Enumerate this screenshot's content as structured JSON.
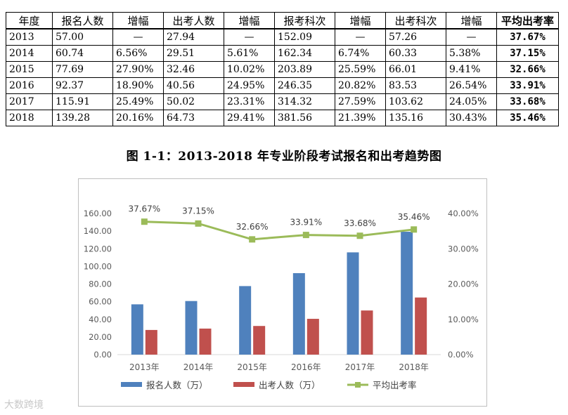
{
  "table": {
    "headers": [
      "年度",
      "报名人数",
      "增幅",
      "出考人数",
      "增幅",
      "报考科次",
      "增幅",
      "出考科次",
      "增幅",
      "平均出考率"
    ],
    "rows": [
      [
        "2013",
        "57.00",
        "—",
        "27.94",
        "—",
        "152.09",
        "—",
        "57.26",
        "—",
        "37.67%"
      ],
      [
        "2014",
        "60.74",
        "6.56%",
        "29.51",
        "5.61%",
        "162.34",
        "6.74%",
        "60.33",
        "5.38%",
        "37.15%"
      ],
      [
        "2015",
        "77.69",
        "27.90%",
        "32.46",
        "10.02%",
        "203.89",
        "25.59%",
        "66.01",
        "9.41%",
        "32.66%"
      ],
      [
        "2016",
        "92.37",
        "18.90%",
        "40.56",
        "24.95%",
        "246.35",
        "20.82%",
        "83.53",
        "26.54%",
        "33.91%"
      ],
      [
        "2017",
        "115.91",
        "25.49%",
        "50.02",
        "23.31%",
        "314.32",
        "27.59%",
        "103.62",
        "24.05%",
        "33.68%"
      ],
      [
        "2018",
        "139.28",
        "20.16%",
        "64.73",
        "29.41%",
        "381.56",
        "21.39%",
        "135.16",
        "30.43%",
        "35.46%"
      ]
    ]
  },
  "figure_title": "图 1-1：2013-2018 年专业阶段考试报名和出考趋势图",
  "watermark": "大数跨境",
  "chart_data": {
    "type": "bar",
    "categories": [
      "2013年",
      "2014年",
      "2015年",
      "2016年",
      "2017年",
      "2018年"
    ],
    "series": [
      {
        "name": "报名人数（万）",
        "type": "bar",
        "axis": "left",
        "color": "#4f81bd",
        "values": [
          57.0,
          60.74,
          77.69,
          92.37,
          115.91,
          139.28
        ]
      },
      {
        "name": "出考人数（万）",
        "type": "bar",
        "axis": "left",
        "color": "#c0504d",
        "values": [
          27.94,
          29.51,
          32.46,
          40.56,
          50.02,
          64.73
        ]
      },
      {
        "name": "平均出考率",
        "type": "line",
        "axis": "right",
        "color": "#9bbb59",
        "values": [
          37.67,
          37.15,
          32.66,
          33.91,
          33.68,
          35.46
        ],
        "labels": [
          "37.67%",
          "37.15%",
          "32.66%",
          "33.91%",
          "33.68%",
          "35.46%"
        ]
      }
    ],
    "ylim": [
      0,
      160
    ],
    "yticks": [
      "0.00",
      "20.00",
      "40.00",
      "60.00",
      "80.00",
      "100.00",
      "120.00",
      "140.00",
      "160.00"
    ],
    "y2lim": [
      0,
      40
    ],
    "y2ticks": [
      "0.00%",
      "10.00%",
      "20.00%",
      "30.00%",
      "40.00%"
    ],
    "grid": false,
    "legend_position": "bottom"
  }
}
